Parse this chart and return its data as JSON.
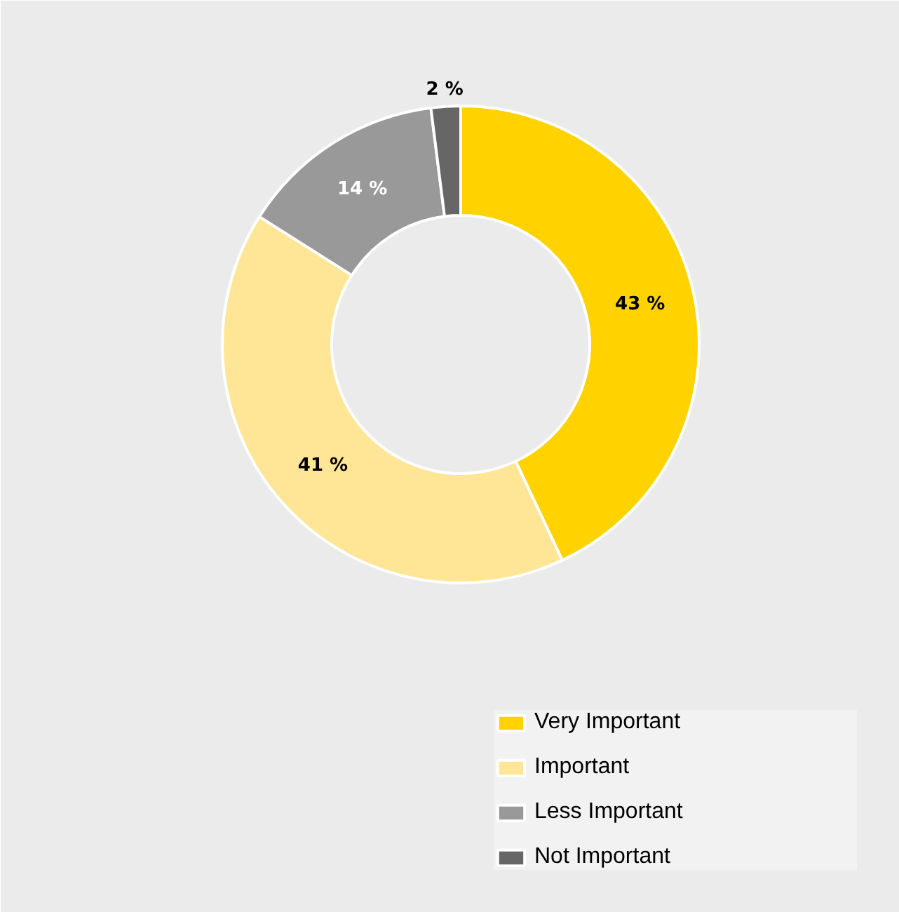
{
  "chart_data": {
    "type": "donut",
    "categories": [
      "Very Important",
      "Important",
      "Less Important",
      "Not Important"
    ],
    "values": [
      43,
      41,
      14,
      2
    ],
    "colors": [
      "#ffd200",
      "#ffe696",
      "#999999",
      "#666666"
    ],
    "value_labels": [
      "43 %",
      "41 %",
      "14 %",
      "2 %"
    ],
    "legend": "bottom right"
  }
}
